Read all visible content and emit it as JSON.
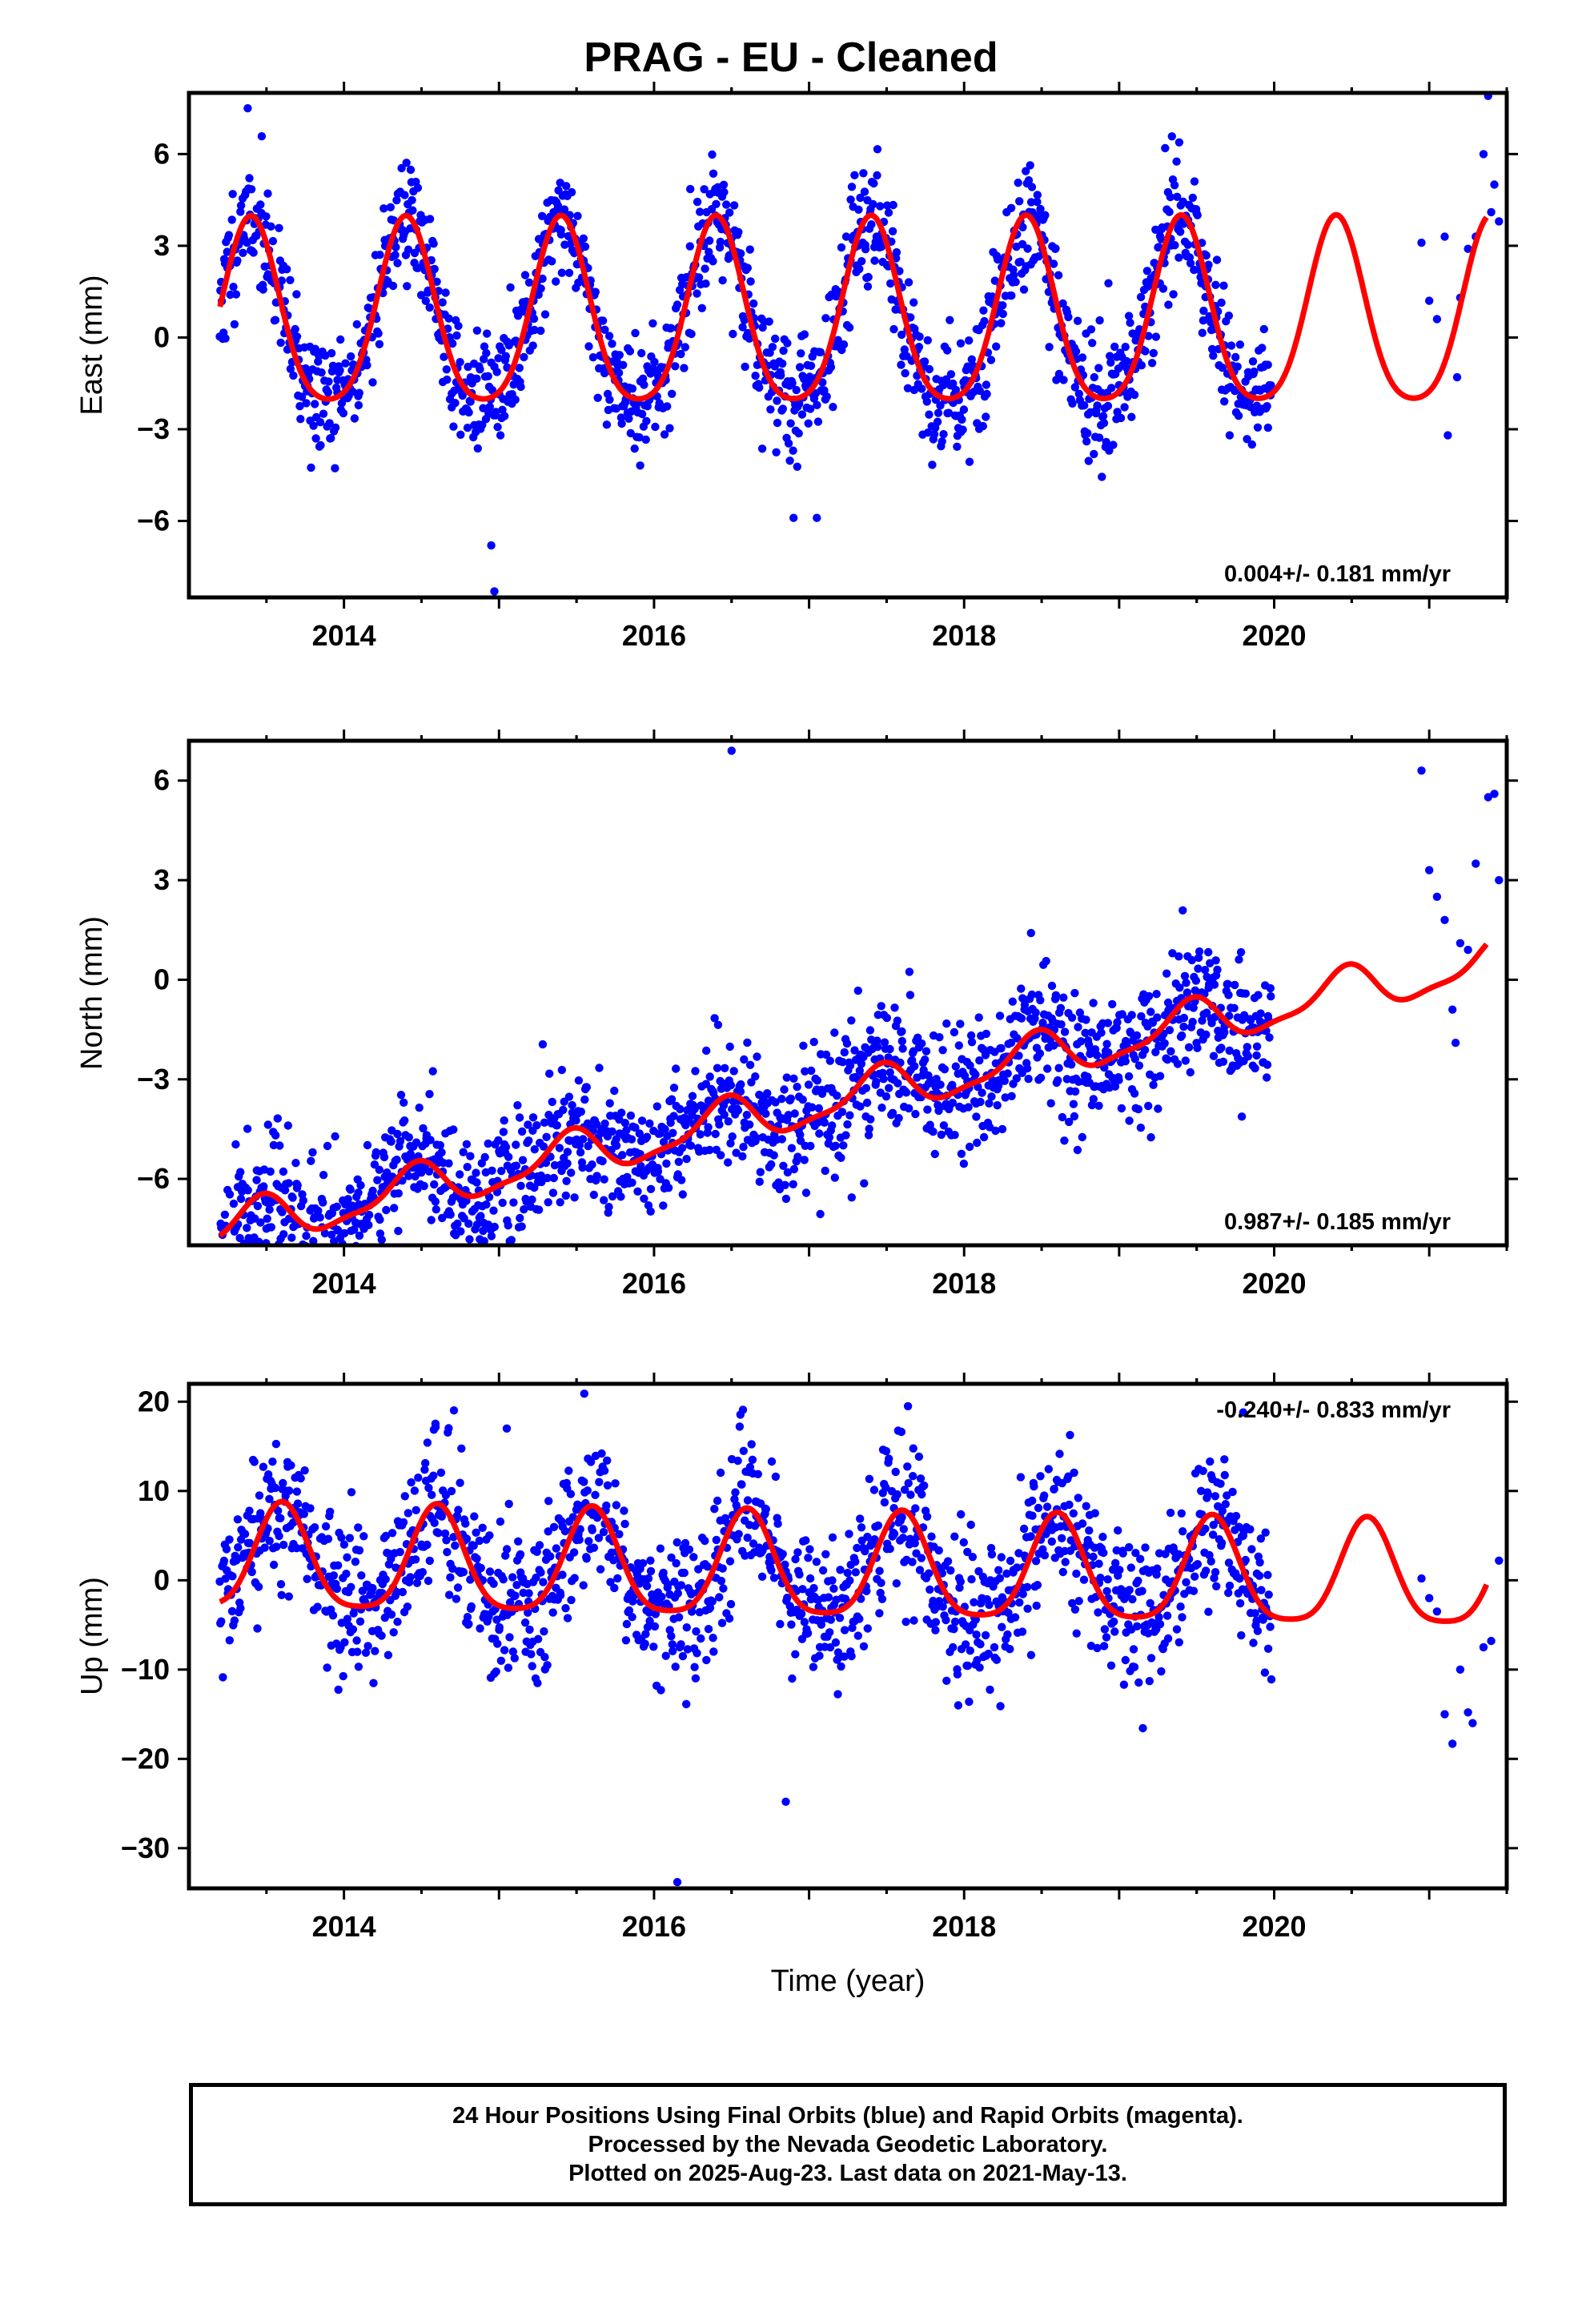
{
  "title": "PRAG  - EU - Cleaned",
  "footer": [
    "24 Hour Positions Using Final Orbits (blue) and Rapid Orbits (magenta).",
    "Processed by the Nevada Geodetic Laboratory.",
    "Plotted on 2025-Aug-23. Last data on 2021-May-13."
  ],
  "xlabel": "Time (year)",
  "colors": {
    "points": "#0000ff",
    "model": "#ff0000",
    "axes": "#000000"
  },
  "chart_data": [
    {
      "type": "scatter",
      "name": "east",
      "ylabel": "East (mm)",
      "xlim": [
        2013.0,
        2021.5
      ],
      "ylim": [
        -8.5,
        8
      ],
      "yticks": [
        6,
        3,
        0,
        -3,
        -6
      ],
      "ytick_labels": [
        "6",
        "3",
        "0",
        "−3",
        "−6"
      ],
      "xticks": [
        2014,
        2016,
        2018,
        2020
      ],
      "xtick_labels": [
        "2014",
        "2016",
        "2018",
        "2020"
      ],
      "rate_label": "0.004+/- 0.181 mm/yr",
      "rate_position": "bottom-right",
      "model": {
        "offset": 0.5,
        "trend": 0.004,
        "annual_amp": 3.0,
        "annual_peak": 2013.4,
        "semi_amp": 0.5,
        "semi_peak": 2013.4,
        "t0": 2013.2,
        "t1": 2021.37
      },
      "points": {
        "t0": 2013.2,
        "t1": 2019.98,
        "noise": 1.0,
        "count": 1500,
        "seed": 11
      },
      "sparse_points": [
        [
          2020.95,
          3.1
        ],
        [
          2021.0,
          1.2
        ],
        [
          2021.05,
          0.6
        ],
        [
          2021.1,
          3.3
        ],
        [
          2021.12,
          -3.2
        ],
        [
          2021.18,
          -1.3
        ],
        [
          2021.2,
          1.3
        ],
        [
          2021.25,
          2.9
        ],
        [
          2021.3,
          3.3
        ],
        [
          2021.35,
          6.0
        ],
        [
          2021.38,
          7.9
        ],
        [
          2021.4,
          4.1
        ],
        [
          2021.42,
          5.0
        ],
        [
          2021.45,
          3.8
        ]
      ],
      "outliers": [
        [
          2014.95,
          -6.8
        ],
        [
          2014.97,
          -8.3
        ],
        [
          2016.9,
          -5.9
        ],
        [
          2017.05,
          -5.9
        ]
      ]
    },
    {
      "type": "scatter",
      "name": "north",
      "ylabel": "North (mm)",
      "xlim": [
        2013.0,
        2021.5
      ],
      "ylim": [
        -8,
        7.2
      ],
      "yticks": [
        6,
        3,
        0,
        -3,
        -6
      ],
      "ytick_labels": [
        "6",
        "3",
        "0",
        "−3",
        "−6"
      ],
      "xticks": [
        2014,
        2016,
        2018,
        2020
      ],
      "xtick_labels": [
        "2014",
        "2016",
        "2018",
        "2020"
      ],
      "rate_label": "0.987+/- 0.185 mm/yr",
      "rate_position": "bottom-right",
      "model": {
        "offset": -3.8,
        "trend": 0.987,
        "annual_amp": 0.65,
        "annual_peak": 2013.45,
        "semi_amp": 0.2,
        "semi_peak": 2013.5,
        "t0": 2013.2,
        "t1": 2021.37
      },
      "points": {
        "t0": 2013.2,
        "t1": 2019.98,
        "noise": 1.0,
        "count": 1500,
        "seed": 23
      },
      "sparse_points": [
        [
          2020.95,
          6.3
        ],
        [
          2021.0,
          3.3
        ],
        [
          2021.05,
          2.5
        ],
        [
          2021.1,
          1.8
        ],
        [
          2021.15,
          -0.9
        ],
        [
          2021.17,
          -1.9
        ],
        [
          2021.2,
          1.1
        ],
        [
          2021.25,
          0.9
        ],
        [
          2021.3,
          3.5
        ],
        [
          2021.38,
          5.5
        ],
        [
          2021.42,
          5.6
        ],
        [
          2021.45,
          3.0
        ]
      ],
      "outliers": [
        [
          2016.5,
          6.9
        ],
        [
          2013.4,
          -7.8
        ],
        [
          2013.5,
          -7.5
        ]
      ]
    },
    {
      "type": "scatter",
      "name": "up",
      "ylabel": "Up (mm)",
      "xlim": [
        2013.0,
        2021.5
      ],
      "ylim": [
        -34.5,
        22
      ],
      "yticks": [
        20,
        10,
        0,
        -10,
        -20,
        -30
      ],
      "ytick_labels": [
        "20",
        "10",
        "0",
        "−10",
        "−20",
        "−30"
      ],
      "xticks": [
        2014,
        2016,
        2018,
        2020
      ],
      "xtick_labels": [
        "2014",
        "2016",
        "2018",
        "2020"
      ],
      "rate_label": "-0.240+/- 0.833 mm/yr",
      "rate_position": "top-right",
      "model": {
        "offset": 1.0,
        "trend": -0.24,
        "annual_amp": 5.8,
        "annual_peak": 2013.6,
        "semi_amp": 1.2,
        "semi_peak": 2013.6,
        "t0": 2013.2,
        "t1": 2021.37
      },
      "points": {
        "t0": 2013.2,
        "t1": 2019.98,
        "noise": 4.2,
        "count": 1500,
        "seed": 37
      },
      "sparse_points": [
        [
          2020.95,
          0.2
        ],
        [
          2021.0,
          -2.0
        ],
        [
          2021.05,
          -3.5
        ],
        [
          2021.1,
          -15.0
        ],
        [
          2021.15,
          -18.3
        ],
        [
          2021.2,
          -10.0
        ],
        [
          2021.25,
          -14.8
        ],
        [
          2021.28,
          -16.0
        ],
        [
          2021.35,
          -7.5
        ],
        [
          2021.4,
          -6.8
        ],
        [
          2021.45,
          2.2
        ]
      ],
      "outliers": [
        [
          2016.15,
          -33.8
        ],
        [
          2016.85,
          -24.8
        ],
        [
          2015.55,
          20.9
        ],
        [
          2019.8,
          18.8
        ],
        [
          2015.05,
          17.0
        ]
      ]
    }
  ]
}
